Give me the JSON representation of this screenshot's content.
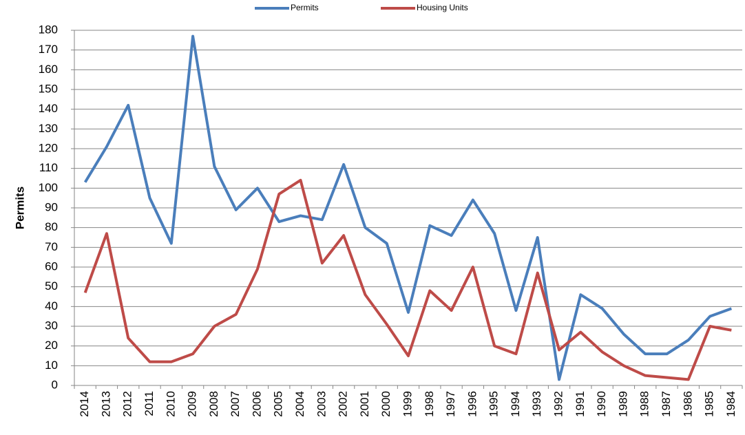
{
  "chart_data": {
    "type": "line",
    "y_label": "Permits",
    "categories": [
      "2014",
      "2013",
      "2012",
      "2011",
      "2010",
      "2009",
      "2008",
      "2007",
      "2006",
      "2005",
      "2004",
      "2003",
      "2002",
      "2001",
      "2000",
      "1999",
      "1998",
      "1997",
      "1996",
      "1995",
      "1994",
      "1993",
      "1992",
      "1991",
      "1990",
      "1989",
      "1988",
      "1987",
      "1986",
      "1985",
      "1984"
    ],
    "series": [
      {
        "name": "Permits",
        "color": "#4a7ebb",
        "values": [
          103,
          121,
          142,
          95,
          72,
          177,
          111,
          89,
          100,
          83,
          86,
          84,
          112,
          80,
          72,
          37,
          81,
          76,
          94,
          77,
          38,
          75,
          3,
          46,
          39,
          26,
          16,
          16,
          23,
          35,
          39
        ]
      },
      {
        "name": "Housing Units",
        "color": "#be4b48",
        "values": [
          47,
          77,
          24,
          12,
          12,
          16,
          30,
          36,
          59,
          97,
          104,
          62,
          76,
          46,
          31,
          15,
          48,
          38,
          60,
          20,
          16,
          57,
          18,
          27,
          17,
          10,
          5,
          4,
          3,
          30,
          28
        ]
      }
    ],
    "ylim": [
      0,
      180
    ],
    "yticks": [
      0,
      10,
      20,
      30,
      40,
      50,
      60,
      70,
      80,
      90,
      100,
      110,
      120,
      130,
      140,
      150,
      160,
      170,
      180
    ],
    "grid": true,
    "legend": "top"
  }
}
